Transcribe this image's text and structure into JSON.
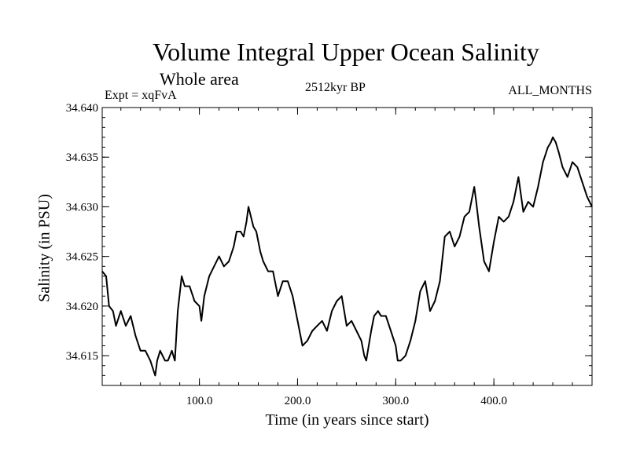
{
  "chart_data": {
    "type": "line",
    "title": "Volume Integral Upper Ocean Salinity",
    "subtitle": "Whole area",
    "experiment": "Expt = xqFvA",
    "period": "2512kyr BP",
    "months": "ALL_MONTHS",
    "xlabel": "Time (in years since start)",
    "ylabel": "Salinity (in PSU)",
    "xlim": [
      1,
      500
    ],
    "ylim": [
      34.612,
      34.64
    ],
    "xticks": [
      100,
      200,
      300,
      400
    ],
    "xtick_labels": [
      "100.0",
      "200.0",
      "300.0",
      "400.0"
    ],
    "yticks": [
      34.615,
      34.62,
      34.625,
      34.63,
      34.635,
      34.64
    ],
    "ytick_labels": [
      "34.615",
      "34.620",
      "34.625",
      "34.630",
      "34.635",
      "34.640"
    ],
    "grid": false,
    "series": [
      {
        "name": "Salinity",
        "x": [
          1,
          5,
          8,
          12,
          15,
          20,
          25,
          30,
          35,
          40,
          45,
          50,
          55,
          57,
          60,
          65,
          68,
          72,
          75,
          78,
          82,
          85,
          90,
          95,
          100,
          102,
          105,
          110,
          115,
          120,
          125,
          130,
          135,
          138,
          142,
          145,
          148,
          150,
          155,
          158,
          162,
          165,
          170,
          175,
          180,
          185,
          190,
          195,
          200,
          205,
          210,
          215,
          220,
          225,
          230,
          235,
          240,
          245,
          250,
          255,
          260,
          265,
          268,
          270,
          275,
          278,
          282,
          285,
          290,
          295,
          300,
          302,
          305,
          310,
          315,
          320,
          325,
          330,
          335,
          340,
          345,
          350,
          355,
          360,
          365,
          370,
          375,
          380,
          382,
          385,
          390,
          395,
          400,
          405,
          410,
          415,
          420,
          425,
          430,
          435,
          440,
          445,
          450,
          455,
          458,
          460,
          463,
          466,
          470,
          475,
          480,
          485,
          490,
          495,
          500
        ],
        "values": [
          34.6235,
          34.623,
          34.62,
          34.6195,
          34.618,
          34.6195,
          34.618,
          34.619,
          34.617,
          34.6155,
          34.6155,
          34.6145,
          34.613,
          34.6145,
          34.6155,
          34.6145,
          34.6145,
          34.6155,
          34.6145,
          34.6195,
          34.623,
          34.622,
          34.622,
          34.6205,
          34.62,
          34.6185,
          34.621,
          34.623,
          34.624,
          34.625,
          34.624,
          34.6245,
          34.626,
          34.6275,
          34.6275,
          34.627,
          34.6285,
          34.63,
          34.628,
          34.6275,
          34.6255,
          34.6245,
          34.6235,
          34.6235,
          34.621,
          34.6225,
          34.6225,
          34.621,
          34.6185,
          34.616,
          34.6165,
          34.6175,
          34.618,
          34.6185,
          34.6175,
          34.6195,
          34.6205,
          34.621,
          34.618,
          34.6185,
          34.6175,
          34.6165,
          34.615,
          34.6145,
          34.6175,
          34.619,
          34.6195,
          34.619,
          34.619,
          34.6175,
          34.616,
          34.6145,
          34.6145,
          34.615,
          34.6165,
          34.6185,
          34.6215,
          34.6225,
          34.6195,
          34.6205,
          34.6225,
          34.627,
          34.6275,
          34.626,
          34.627,
          34.629,
          34.6295,
          34.632,
          34.6305,
          34.628,
          34.6245,
          34.6235,
          34.6265,
          34.629,
          34.6285,
          34.629,
          34.6305,
          34.633,
          34.6295,
          34.6305,
          34.63,
          34.632,
          34.6345,
          34.636,
          34.6365,
          34.637,
          34.6365,
          34.6355,
          34.634,
          34.633,
          34.6345,
          34.634,
          34.6325,
          34.631,
          34.63
        ]
      }
    ]
  }
}
